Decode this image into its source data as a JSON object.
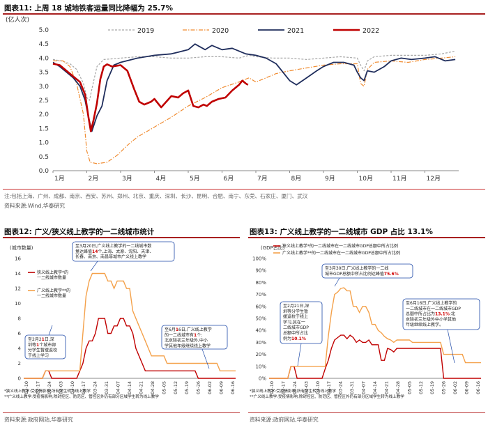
{
  "fig11": {
    "title": "图表11:   上周 18 城地铁客运量同比降幅为 25.7%",
    "note": "注:包括上海、广州、成都、南京、西安、苏州、郑州、北京、重庆、深圳、长沙、昆明、合肥、南宁、东莞、石家庄、厦门、武汉",
    "source": "资料来源:Wind,华泰研究"
  },
  "fig12": {
    "title": "图表12:   广义/狭义线上教学的一二线城市统计",
    "source": "资料来源:政府网站,华泰研究",
    "callout_top": [
      "至3月20日,广义线上教学的一二线城市数",
      "量达峰值14个,上海、太原、沈阳、天津、",
      "长春、南京、南昌等城市广义线上教学"
    ],
    "callout_left": [
      "至2月21日,深",
      "圳等1个城市部",
      "分学生暂缓返校",
      "于线上学习"
    ],
    "callout_right": [
      "至6月16日,广义线上教学",
      "的一二线城市有1个:",
      "北京除初三年级外,中小",
      "学其他年级继续线上教学"
    ],
    "footnotes": [
      "*狭义线上教学:受疫情影响,所有学生转为线上教学",
      "**广义线上教学:受疫情影响,除封控区、防范区、管控区外仍有部分区域学生转为线上教学"
    ]
  },
  "fig13": {
    "title": "图表13:   广义线上教学的一二线城市 GDP 占比 13.1%",
    "source": "资料来源:政府网站,华泰研究",
    "callout_top": [
      "至3月30日,广义线上教学的一二线",
      "城市GDP总额中所占比例达峰值75.6%"
    ],
    "callout_left": [
      "至2月21日,深",
      "圳等分学生暂",
      "缓返校于线上",
      "学习,其在一",
      "二线城市GDP",
      "总额中所占比",
      "例为10.1%"
    ],
    "callout_right": [
      "至6月16日,广义线上教学的",
      "一二线城市在一二线城市GDP",
      "总额中所占比为13.1%:北",
      "京除初三年级外中小学其他",
      "年级继续线上教学。"
    ],
    "footnotes": [
      "*狭义线上教学:受疫情影响,所有学生转为线上教学",
      "**广义线上教学:受疫情影响,除封控区、防范区、管控区外仍有部分区域学生转为线上教学"
    ]
  },
  "chart_data": [
    {
      "id": "fig11",
      "type": "line",
      "ylabel": "(亿人次)",
      "ylim": [
        0,
        5
      ],
      "yticks": [
        0,
        0.5,
        1,
        1.5,
        2,
        2.5,
        3,
        3.5,
        4,
        4.5,
        5
      ],
      "ytick_labels": [
        "0.0",
        "0.5",
        "1.0",
        "1.5",
        "2.0",
        "2.5",
        "3.0",
        "3.5",
        "4.0",
        "4.5",
        "5.0"
      ],
      "xlim": [
        1,
        13
      ],
      "xtick_labels": [
        "1月",
        "2月",
        "3月",
        "4月",
        "5月",
        "6月",
        "7月",
        "8月",
        "9月",
        "10月",
        "11月",
        "12月"
      ],
      "series": [
        {
          "name": "2019",
          "color": "#a6a6a6",
          "style": "dashed",
          "points": [
            [
              1,
              3.95
            ],
            [
              1.25,
              3.9
            ],
            [
              1.5,
              3.8
            ],
            [
              1.7,
              3.6
            ],
            [
              1.9,
              3.1
            ],
            [
              2.0,
              2.6
            ],
            [
              2.08,
              2.5
            ],
            [
              2.15,
              2.9
            ],
            [
              2.3,
              3.7
            ],
            [
              2.5,
              3.95
            ],
            [
              3,
              4.0
            ],
            [
              3.5,
              4.05
            ],
            [
              4,
              4.05
            ],
            [
              4.5,
              4.0
            ],
            [
              5,
              4.0
            ],
            [
              5.5,
              4.05
            ],
            [
              6,
              4.05
            ],
            [
              6.5,
              4.0
            ],
            [
              6.8,
              4.1
            ],
            [
              7,
              4.05
            ],
            [
              7.5,
              4.0
            ],
            [
              8,
              4.0
            ],
            [
              8.5,
              3.95
            ],
            [
              9,
              4.0
            ],
            [
              9.5,
              4.05
            ],
            [
              10,
              4.0
            ],
            [
              10.1,
              3.75
            ],
            [
              10.2,
              3.55
            ],
            [
              10.3,
              3.9
            ],
            [
              10.5,
              4.05
            ],
            [
              11,
              4.1
            ],
            [
              11.5,
              4.1
            ],
            [
              12,
              4.1
            ],
            [
              12.5,
              4.15
            ],
            [
              12.9,
              4.25
            ]
          ]
        },
        {
          "name": "2020",
          "color": "#f08c32",
          "style": "dashdot",
          "points": [
            [
              1,
              3.9
            ],
            [
              1.3,
              3.9
            ],
            [
              1.5,
              3.7
            ],
            [
              1.7,
              3.1
            ],
            [
              1.9,
              2.0
            ],
            [
              2.0,
              0.7
            ],
            [
              2.1,
              0.3
            ],
            [
              2.3,
              0.25
            ],
            [
              2.6,
              0.3
            ],
            [
              2.9,
              0.55
            ],
            [
              3.2,
              0.9
            ],
            [
              3.5,
              1.2
            ],
            [
              4,
              1.55
            ],
            [
              4.5,
              1.9
            ],
            [
              5,
              2.3
            ],
            [
              5.5,
              2.6
            ],
            [
              6,
              2.95
            ],
            [
              6.5,
              3.15
            ],
            [
              6.8,
              3.3
            ],
            [
              7,
              3.15
            ],
            [
              7.3,
              3.3
            ],
            [
              7.6,
              3.45
            ],
            [
              8,
              3.55
            ],
            [
              8.5,
              3.65
            ],
            [
              9,
              3.75
            ],
            [
              9.5,
              3.8
            ],
            [
              10,
              3.8
            ],
            [
              10.1,
              3.1
            ],
            [
              10.2,
              3.0
            ],
            [
              10.3,
              3.6
            ],
            [
              10.5,
              3.85
            ],
            [
              11,
              3.9
            ],
            [
              11.5,
              3.85
            ],
            [
              12,
              3.95
            ],
            [
              12.5,
              4.0
            ],
            [
              12.9,
              4.05
            ]
          ]
        },
        {
          "name": "2021",
          "color": "#1f2d5c",
          "style": "solid",
          "points": [
            [
              1,
              3.85
            ],
            [
              1.2,
              3.7
            ],
            [
              1.4,
              3.5
            ],
            [
              1.6,
              3.3
            ],
            [
              1.8,
              3.0
            ],
            [
              1.95,
              2.5
            ],
            [
              2.05,
              1.9
            ],
            [
              2.15,
              1.4
            ],
            [
              2.3,
              1.95
            ],
            [
              2.45,
              2.3
            ],
            [
              2.6,
              3.2
            ],
            [
              2.8,
              3.75
            ],
            [
              3,
              3.85
            ],
            [
              3.5,
              4.0
            ],
            [
              4,
              4.1
            ],
            [
              4.5,
              4.15
            ],
            [
              5,
              4.3
            ],
            [
              5.2,
              4.5
            ],
            [
              5.5,
              4.3
            ],
            [
              5.7,
              4.45
            ],
            [
              6,
              4.3
            ],
            [
              6.3,
              4.35
            ],
            [
              6.7,
              4.15
            ],
            [
              7,
              4.1
            ],
            [
              7.3,
              4.0
            ],
            [
              7.6,
              3.8
            ],
            [
              7.8,
              3.5
            ],
            [
              8.0,
              3.2
            ],
            [
              8.2,
              3.05
            ],
            [
              8.5,
              3.3
            ],
            [
              8.8,
              3.55
            ],
            [
              9,
              3.7
            ],
            [
              9.3,
              3.85
            ],
            [
              9.6,
              3.85
            ],
            [
              9.9,
              3.75
            ],
            [
              10,
              3.5
            ],
            [
              10.1,
              3.3
            ],
            [
              10.2,
              3.2
            ],
            [
              10.3,
              3.55
            ],
            [
              10.5,
              3.5
            ],
            [
              10.8,
              3.7
            ],
            [
              11,
              3.9
            ],
            [
              11.3,
              4.0
            ],
            [
              11.6,
              3.95
            ],
            [
              12,
              4.0
            ],
            [
              12.3,
              4.05
            ],
            [
              12.6,
              3.9
            ],
            [
              12.9,
              3.95
            ]
          ]
        },
        {
          "name": "2022",
          "color": "#c00000",
          "style": "solid",
          "points": [
            [
              1,
              3.8
            ],
            [
              1.2,
              3.75
            ],
            [
              1.4,
              3.55
            ],
            [
              1.6,
              3.35
            ],
            [
              1.8,
              3.15
            ],
            [
              1.95,
              2.7
            ],
            [
              2.05,
              1.9
            ],
            [
              2.12,
              1.4
            ],
            [
              2.2,
              1.8
            ],
            [
              2.3,
              2.4
            ],
            [
              2.4,
              3.25
            ],
            [
              2.5,
              3.7
            ],
            [
              2.6,
              3.78
            ],
            [
              2.75,
              3.7
            ],
            [
              3.0,
              3.75
            ],
            [
              3.2,
              3.55
            ],
            [
              3.4,
              2.9
            ],
            [
              3.55,
              2.45
            ],
            [
              3.7,
              2.35
            ],
            [
              3.9,
              2.45
            ],
            [
              4.0,
              2.55
            ],
            [
              4.2,
              2.25
            ],
            [
              4.35,
              2.45
            ],
            [
              4.5,
              2.65
            ],
            [
              4.7,
              2.6
            ],
            [
              4.85,
              2.75
            ],
            [
              5.0,
              2.85
            ],
            [
              5.15,
              2.3
            ],
            [
              5.3,
              2.25
            ],
            [
              5.45,
              2.35
            ],
            [
              5.55,
              2.3
            ],
            [
              5.7,
              2.45
            ],
            [
              5.9,
              2.55
            ],
            [
              6.1,
              2.6
            ],
            [
              6.3,
              2.85
            ],
            [
              6.5,
              3.05
            ],
            [
              6.6,
              3.2
            ],
            [
              6.7,
              3.1
            ],
            [
              6.77,
              3.05
            ]
          ]
        }
      ]
    },
    {
      "id": "fig12",
      "type": "line",
      "ylabel": "(城市数量)",
      "ylim": [
        0,
        16
      ],
      "yticks": [
        0,
        2,
        4,
        6,
        8,
        10,
        12,
        14,
        16
      ],
      "xtick_labels": [
        "02-10",
        "02-17",
        "02-24",
        "03-03",
        "03-10",
        "03-17",
        "03-24",
        "03-31",
        "04-07",
        "04-14",
        "04-21",
        "04-28",
        "05-05",
        "05-12",
        "05-19",
        "05-26",
        "06-02",
        "06-09",
        "06-16"
      ],
      "series": [
        {
          "name": "狭义线上教学*的一二线城市数量",
          "color": "#c00000",
          "values": [
            0,
            0,
            0,
            0,
            0,
            0,
            0,
            1,
            1,
            0,
            0,
            0,
            0,
            0,
            0,
            0,
            0,
            0,
            1,
            2,
            4,
            5,
            5,
            6,
            8,
            8,
            8,
            6,
            6,
            7,
            7,
            8,
            8,
            7,
            7,
            6,
            4,
            3,
            2,
            1,
            1,
            1,
            1,
            1,
            1,
            1,
            1,
            1,
            1,
            1,
            1,
            1,
            1,
            1,
            1,
            1,
            0,
            0,
            0,
            0,
            0,
            0,
            0,
            0,
            0,
            0,
            0,
            0,
            0
          ]
        },
        {
          "name": "广义线上教学**的一二线城市数量",
          "color": "#f4a14a",
          "values": [
            0,
            0,
            0,
            0,
            0,
            0,
            0,
            1,
            1,
            1,
            1,
            1,
            1,
            1,
            1,
            1,
            1,
            1,
            1,
            6,
            11,
            13,
            14,
            14,
            14,
            14,
            14,
            13,
            13,
            12,
            13,
            13,
            13,
            12,
            12,
            9,
            8,
            7,
            6,
            5,
            4,
            3,
            3,
            3,
            3,
            3,
            2,
            2,
            2,
            2,
            2,
            2,
            2,
            2,
            2,
            2,
            2,
            2,
            2,
            2,
            2,
            2,
            2,
            1,
            1,
            1,
            1,
            1,
            1
          ]
        }
      ]
    },
    {
      "id": "fig13",
      "type": "line",
      "ylabel": "(GDP占比)",
      "ylim": [
        0,
        100
      ],
      "yticks": [
        0,
        10,
        20,
        30,
        40,
        50,
        60,
        70,
        80,
        90,
        100
      ],
      "ytick_labels": [
        "0%",
        "10%",
        "20%",
        "30%",
        "40%",
        "50%",
        "60%",
        "70%",
        "80%",
        "90%",
        "100%"
      ],
      "xtick_labels": [
        "02-10",
        "02-17",
        "02-24",
        "03-03",
        "03-10",
        "03-17",
        "03-24",
        "03-31",
        "04-07",
        "04-14",
        "04-21",
        "04-28",
        "05-05",
        "05-12",
        "05-19",
        "05-26",
        "06-02",
        "06-09",
        "06-16"
      ],
      "series": [
        {
          "name": "狭义线上教学*的一二线城市在一二线城市GDP总额中所占比例",
          "color": "#c00000",
          "values": [
            0,
            0,
            0,
            0,
            0,
            0,
            0,
            10,
            10,
            0,
            0,
            0,
            0,
            0,
            0,
            0,
            0,
            0,
            8,
            15,
            25,
            32,
            34,
            36,
            36,
            33,
            36,
            34,
            30,
            32,
            30,
            30,
            32,
            28,
            28,
            28,
            15,
            15,
            25,
            24,
            22,
            25,
            25,
            25,
            25,
            25,
            25,
            25,
            25,
            25,
            25,
            25,
            25,
            25,
            25,
            25,
            0,
            0,
            0,
            0,
            0,
            0,
            0,
            0,
            0,
            0,
            0,
            0,
            0
          ]
        },
        {
          "name": "广义线上教学**的一二线城市在一二线城市GDP总额中所占比例",
          "color": "#f4a14a",
          "values": [
            0,
            0,
            0,
            0,
            0,
            0,
            0,
            10,
            10,
            10,
            10,
            10,
            10,
            10,
            10,
            10,
            10,
            10,
            10,
            35,
            55,
            70,
            72,
            75,
            75.6,
            73,
            73,
            60,
            60,
            55,
            60,
            60,
            55,
            45,
            45,
            40,
            38,
            35,
            33,
            32,
            30,
            32,
            32,
            32,
            32,
            32,
            30,
            30,
            30,
            30,
            30,
            30,
            30,
            30,
            30,
            30,
            20,
            20,
            20,
            20,
            20,
            20,
            20,
            13,
            13,
            13,
            13,
            13,
            13
          ]
        }
      ]
    }
  ]
}
